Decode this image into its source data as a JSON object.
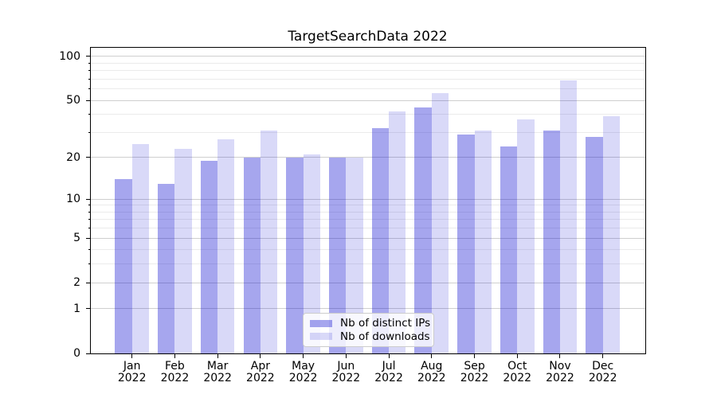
{
  "title": "TargetSearchData 2022",
  "background_color": "#ffffff",
  "chart_data": {
    "type": "bar",
    "title": "TargetSearchData 2022",
    "categories": [
      "Jan",
      "Feb",
      "Mar",
      "Apr",
      "May",
      "Jun",
      "Jul",
      "Aug",
      "Sep",
      "Oct",
      "Nov",
      "Dec"
    ],
    "category_year": "2022",
    "series": [
      {
        "name": "Nb of distinct IPs",
        "color": "rgba(0,0,205,0.35)",
        "color_over_white": "#a6a6ed",
        "values": [
          14,
          13,
          19,
          20,
          20,
          20,
          32,
          45,
          29,
          24,
          31,
          28
        ]
      },
      {
        "name": "Nb of downloads",
        "color": "rgba(0,0,205,0.15)",
        "color_over_white": "#d9d9f7",
        "values": [
          25,
          23,
          27,
          31,
          21,
          20,
          42,
          56,
          31,
          37,
          69,
          39
        ]
      }
    ],
    "yscale": "log1p",
    "ytick_values": [
      0,
      1,
      2,
      5,
      10,
      20,
      50,
      100
    ],
    "ytick_labels": [
      "0",
      "1",
      "2",
      "5",
      "10",
      "20",
      "50",
      "100"
    ],
    "yminor_values": [
      3,
      4,
      6,
      7,
      8,
      9,
      30,
      40,
      60,
      70,
      80,
      90
    ],
    "ylim_top_value": 116,
    "grid": true,
    "legend_position": "lower center",
    "grid_major_color": "#cfcfcf",
    "grid_minor_color": "#ebebeb"
  }
}
